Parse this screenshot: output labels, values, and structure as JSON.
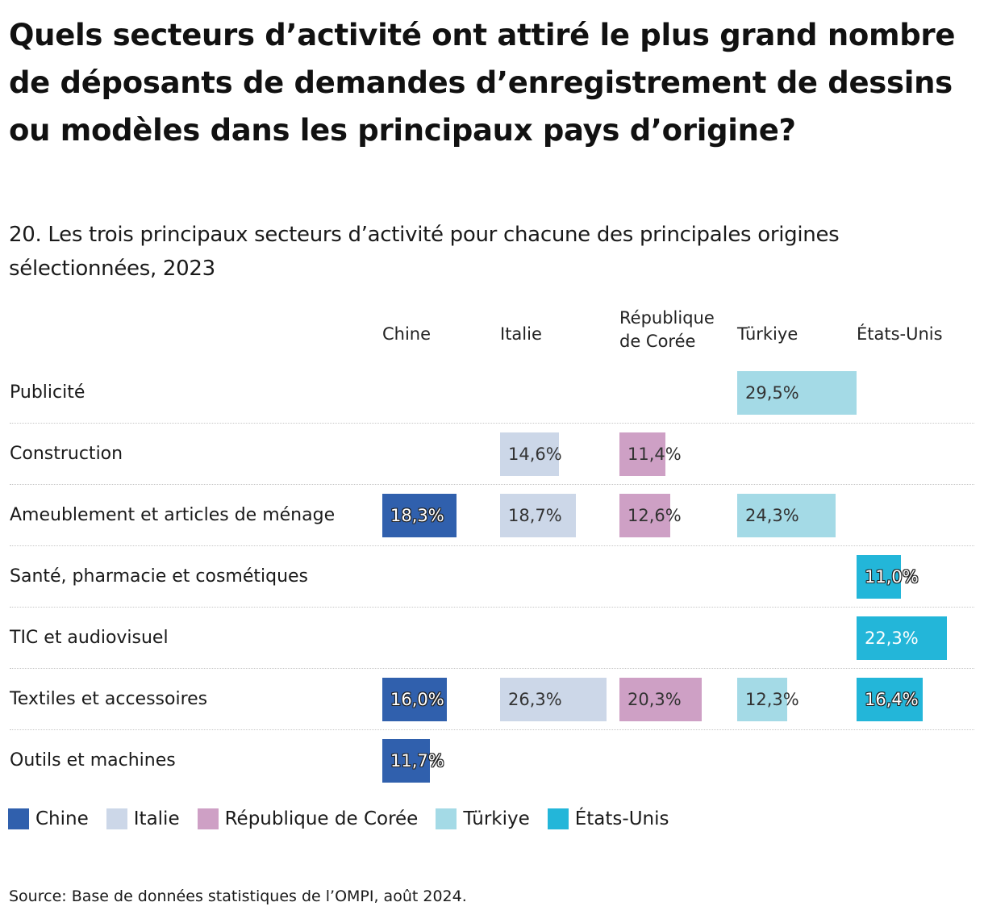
{
  "chart_data": {
    "type": "table",
    "title": "Quels secteurs d’activité ont attiré le plus grand nombre de déposants de demandes d’enregistrement de dessins ou modèles dans les principaux pays d’origine?",
    "subtitle": "20. Les trois principaux secteurs d’activité pour chacune des principales origines sélectionnées, 2023",
    "columns": [
      {
        "key": "chine",
        "label": "Chine",
        "color": "#3060ad"
      },
      {
        "key": "italie",
        "label": "Italie",
        "color": "#ccd7e8"
      },
      {
        "key": "coree",
        "label": "République de Corée",
        "color": "#cea0c5"
      },
      {
        "key": "turkiye",
        "label": "Türkiye",
        "color": "#a4dae6"
      },
      {
        "key": "usa",
        "label": "États-Unis",
        "color": "#23b6d9"
      }
    ],
    "rows": [
      {
        "label": "Publicité",
        "values": {
          "turkiye": 29.5
        },
        "display": {
          "turkiye": "29,5%"
        }
      },
      {
        "label": "Construction",
        "values": {
          "italie": 14.6,
          "coree": 11.4
        },
        "display": {
          "italie": "14,6%",
          "coree": "11,4%"
        }
      },
      {
        "label": "Ameublement et articles de ménage",
        "values": {
          "chine": 18.3,
          "italie": 18.7,
          "coree": 12.6,
          "turkiye": 24.3
        },
        "display": {
          "chine": "18,3%",
          "italie": "18,7%",
          "coree": "12,6%",
          "turkiye": "24,3%"
        }
      },
      {
        "label": "Santé, pharmacie et cosmétiques",
        "values": {
          "usa": 11.0
        },
        "display": {
          "usa": "11,0%"
        }
      },
      {
        "label": "TIC et audiovisuel",
        "values": {
          "usa": 22.3
        },
        "display": {
          "usa": "22,3%"
        }
      },
      {
        "label": "Textiles et accessoires",
        "values": {
          "chine": 16.0,
          "italie": 26.3,
          "coree": 20.3,
          "turkiye": 12.3,
          "usa": 16.4
        },
        "display": {
          "chine": "16,0%",
          "italie": "26,3%",
          "coree": "20,3%",
          "turkiye": "12,3%",
          "usa": "16,4%"
        }
      },
      {
        "label": "Outils et machines",
        "values": {
          "chine": 11.7
        },
        "display": {
          "chine": "11,7%"
        }
      }
    ],
    "value_max": 29.5,
    "legend": [
      "Chine",
      "Italie",
      "République de Corée",
      "Türkiye",
      "États-Unis"
    ],
    "source": "Source: Base de données statistiques de l’OMPI, août 2024."
  }
}
